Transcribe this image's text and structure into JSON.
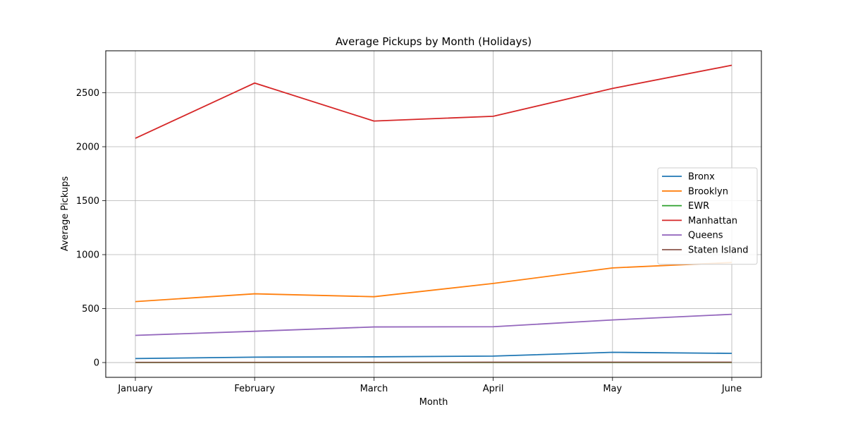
{
  "chart_data": {
    "type": "line",
    "title": "Average Pickups by Month (Holidays)",
    "xlabel": "Month",
    "ylabel": "Average Pickups",
    "categories": [
      "January",
      "February",
      "March",
      "April",
      "May",
      "June"
    ],
    "ylim": [
      -137,
      2889
    ],
    "yticks": [
      0,
      500,
      1000,
      1500,
      2000,
      2500
    ],
    "grid": true,
    "legend_position": "center-right",
    "series": [
      {
        "name": "Bronx",
        "color": "#1f77b4",
        "values": [
          37,
          50,
          53,
          60,
          95,
          85
        ]
      },
      {
        "name": "Brooklyn",
        "color": "#ff7f0e",
        "values": [
          565,
          637,
          610,
          733,
          877,
          927
        ]
      },
      {
        "name": "EWR",
        "color": "#2ca02c",
        "values": [
          0.5,
          0.5,
          0.5,
          0.5,
          0.5,
          0.5
        ]
      },
      {
        "name": "Manhattan",
        "color": "#d62728",
        "values": [
          2078,
          2590,
          2238,
          2282,
          2540,
          2755
        ]
      },
      {
        "name": "Queens",
        "color": "#9467bd",
        "values": [
          252,
          290,
          330,
          332,
          395,
          447
        ]
      },
      {
        "name": "Staten Island",
        "color": "#8c564b",
        "values": [
          2,
          2,
          2,
          3,
          3,
          3
        ]
      }
    ]
  }
}
